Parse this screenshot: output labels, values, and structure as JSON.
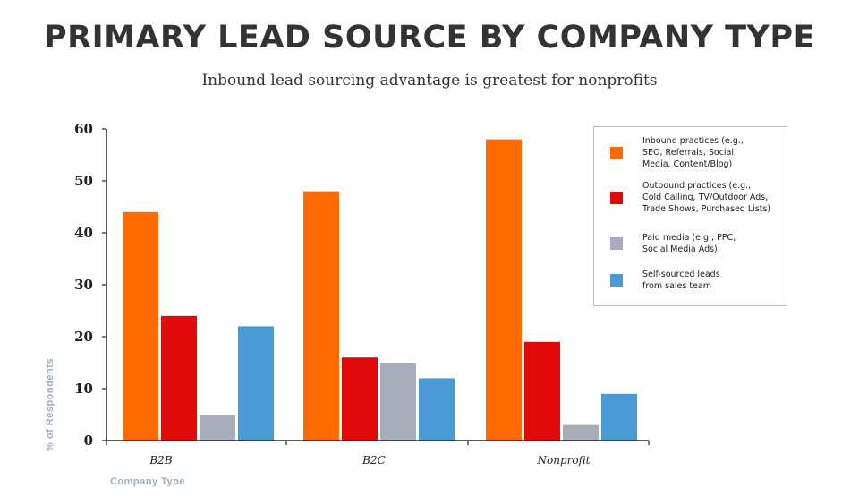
{
  "title": "PRIMARY LEAD SOURCE BY COMPANY TYPE",
  "subtitle": "Inbound lead sourcing advantage is greatest for nonprofits",
  "chart_data": {
    "type": "bar",
    "title": "PRIMARY LEAD SOURCE BY COMPANY TYPE",
    "subtitle": "Inbound lead sourcing advantage is greatest for nonprofits",
    "xlabel": "Company Type",
    "ylabel": "% of Respondents",
    "ylim": [
      0,
      60
    ],
    "yticks": [
      0,
      10,
      20,
      30,
      40,
      50,
      60
    ],
    "categories": [
      "B2B",
      "B2C",
      "Nonprofit"
    ],
    "series": [
      {
        "name": "Inbound practices (e.g., SEO, Referrals, Social Media, Content/Blog)",
        "color": "#ff6b00",
        "values": [
          44,
          48,
          58
        ]
      },
      {
        "name": "Outbound practices (e.g., Cold Calling, TV/Outdoor Ads, Trade Shows, Purchased Lists)",
        "color": "#e00a0a",
        "values": [
          24,
          16,
          19
        ]
      },
      {
        "name": "Paid media (e.g., PPC, Social Media Ads)",
        "color": "#a8adbb",
        "values": [
          5,
          15,
          3
        ]
      },
      {
        "name": "Self-sourced leads from sales team",
        "color": "#4a9ad6",
        "values": [
          22,
          12,
          9
        ]
      }
    ],
    "legend_position": "top-right",
    "grid": false
  },
  "legend": {
    "items": [
      {
        "lines": [
          "Inbound practices (e.g.,",
          "SEO, Referrals, Social",
          "Media, Content/Blog)"
        ],
        "color": "#ff6b00"
      },
      {
        "lines": [
          "Outbound practices (e.g.,",
          "Cold Calling, TV/Outdoor Ads,",
          "Trade Shows, Purchased Lists)"
        ],
        "color": "#e00a0a"
      },
      {
        "lines": [
          "Paid media (e.g., PPC,",
          "Social Media Ads)"
        ],
        "color": "#a8adbb"
      },
      {
        "lines": [
          "Self-sourced leads",
          "from sales team"
        ],
        "color": "#4a9ad6"
      }
    ]
  }
}
